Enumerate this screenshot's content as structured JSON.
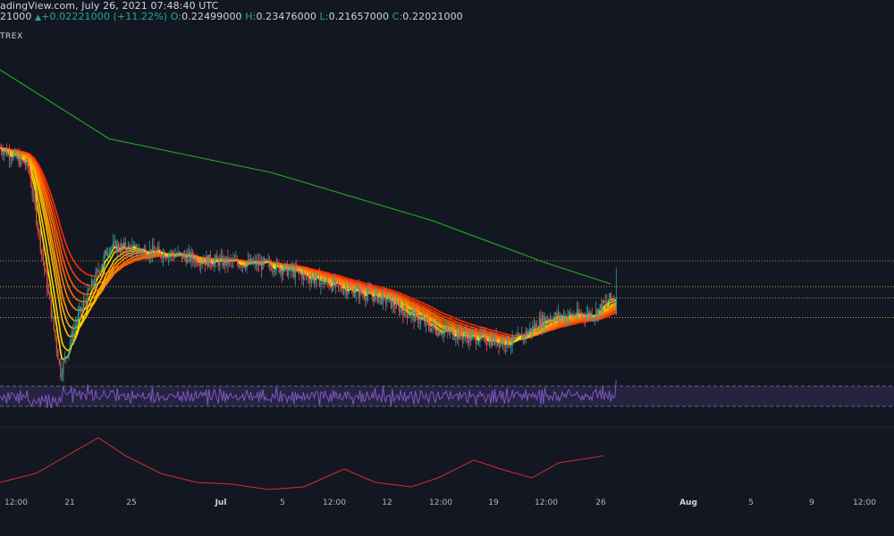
{
  "header": {
    "source_text": "adingView.com, July 26, 2021 07:48:40 UTC",
    "prev_value": "21000",
    "arrow": "▲",
    "change": "+0.02221000 (+11.22%)",
    "open_label": "O:",
    "open": "0.22499000",
    "high_label": "H:",
    "high": "0.23476000",
    "low_label": "L:",
    "low": "0.21657000",
    "close_label": "C:",
    "close": "0.22021000"
  },
  "exchange_label": "TREX",
  "x_ticks": [
    {
      "label": "12:00",
      "bold": false
    },
    {
      "label": "21",
      "bold": false
    },
    {
      "label": "25",
      "bold": false
    },
    {
      "label": "Jul",
      "bold": true
    },
    {
      "label": "5",
      "bold": false
    },
    {
      "label": "12:00",
      "bold": false
    },
    {
      "label": "12",
      "bold": false
    },
    {
      "label": "12:00",
      "bold": false
    },
    {
      "label": "19",
      "bold": false
    },
    {
      "label": "12:00",
      "bold": false
    },
    {
      "label": "26",
      "bold": false
    },
    {
      "label": "Aug",
      "bold": true
    },
    {
      "label": "5",
      "bold": false
    },
    {
      "label": "9",
      "bold": false
    },
    {
      "label": "12:00",
      "bold": false
    }
  ],
  "colors": {
    "background": "#131722",
    "up_candle": "#26a69a",
    "down_candle": "#ef5350",
    "ma200": "#1fa11f",
    "ribbon_fast": "#ffe500",
    "ribbon_slow": "#ff2a00",
    "rsi_line": "#7e57c2",
    "rsi_band": "#4a3a7a",
    "lower_line": "#d32f2f",
    "hlines": "#c8b630"
  },
  "chart_data": [
    {
      "type": "candlestick",
      "title": "",
      "x_range": [
        "2021-06-18",
        "2021-08-12"
      ],
      "horizontal_levels": [
        0.238,
        0.2257,
        0.2203,
        0.211
      ],
      "candles_approx_close": [
        {
          "date": "2021-06-18",
          "close": 0.293
        },
        {
          "date": "2021-06-20",
          "close": 0.283
        },
        {
          "date": "2021-06-22",
          "close": 0.185
        },
        {
          "date": "2021-06-23",
          "close": 0.21
        },
        {
          "date": "2021-06-25",
          "close": 0.245
        },
        {
          "date": "2021-06-29",
          "close": 0.241
        },
        {
          "date": "2021-07-01",
          "close": 0.238
        },
        {
          "date": "2021-07-05",
          "close": 0.236
        },
        {
          "date": "2021-07-09",
          "close": 0.226
        },
        {
          "date": "2021-07-12",
          "close": 0.22
        },
        {
          "date": "2021-07-15",
          "close": 0.206
        },
        {
          "date": "2021-07-17",
          "close": 0.202
        },
        {
          "date": "2021-07-20",
          "close": 0.199
        },
        {
          "date": "2021-07-22",
          "close": 0.211
        },
        {
          "date": "2021-07-25",
          "close": 0.213
        },
        {
          "date": "2021-07-26",
          "close": 0.22021
        }
      ],
      "moving_average_200_approx": [
        {
          "date": "2021-06-18",
          "value": 0.33
        },
        {
          "date": "2021-06-25",
          "value": 0.296
        },
        {
          "date": "2021-07-05",
          "value": 0.28
        },
        {
          "date": "2021-07-15",
          "value": 0.257
        },
        {
          "date": "2021-07-22",
          "value": 0.237
        },
        {
          "date": "2021-07-26",
          "value": 0.227
        }
      ]
    },
    {
      "type": "line",
      "title": "",
      "indicator": "oscillator",
      "band": [
        30,
        70
      ],
      "ylim": [
        0,
        100
      ]
    },
    {
      "type": "line",
      "title": "",
      "indicator": "lower-pane line"
    }
  ]
}
